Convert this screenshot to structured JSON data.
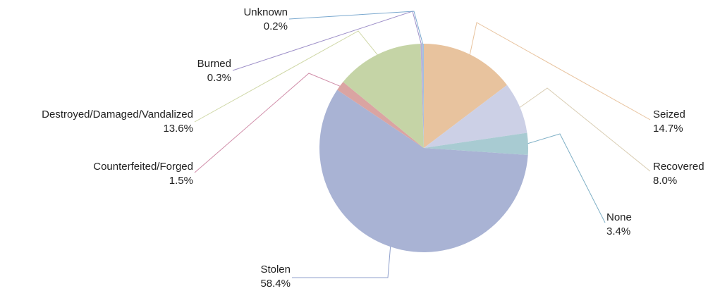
{
  "chart_data": {
    "type": "pie",
    "title": "",
    "slices": [
      {
        "label": "Seized",
        "value": 14.7,
        "value_label": "14.7%",
        "color": "#e8c39e",
        "line_color": "#e8c39e"
      },
      {
        "label": "Recovered",
        "value": 8.0,
        "value_label": "8.0%",
        "color": "#ccd0e6",
        "line_color": "#d9cdb3"
      },
      {
        "label": "None",
        "value": 3.4,
        "value_label": "3.4%",
        "color": "#a8cbd2",
        "line_color": "#7fb0c6"
      },
      {
        "label": "Stolen",
        "value": 58.4,
        "value_label": "58.4%",
        "color": "#a9b3d4",
        "line_color": "#8f9fcc"
      },
      {
        "label": "Counterfeited/Forged",
        "value": 1.5,
        "value_label": "1.5%",
        "color": "#daa4a2",
        "line_color": "#d08ca8"
      },
      {
        "label": "Destroyed/Damaged/Vandalized",
        "value": 13.6,
        "value_label": "13.6%",
        "color": "#c5d4a6",
        "line_color": "#cfd7a6"
      },
      {
        "label": "Burned",
        "value": 0.3,
        "value_label": "0.3%",
        "color": "#b8b0d8",
        "line_color": "#9d8fc8"
      },
      {
        "label": "Unknown",
        "value": 0.2,
        "value_label": "0.2%",
        "color": "#9fc2e0",
        "line_color": "#7ba9cf"
      }
    ],
    "start_angle_deg": 90,
    "direction": "clockwise",
    "legend": "none",
    "labels": "outside-with-leader-lines"
  }
}
